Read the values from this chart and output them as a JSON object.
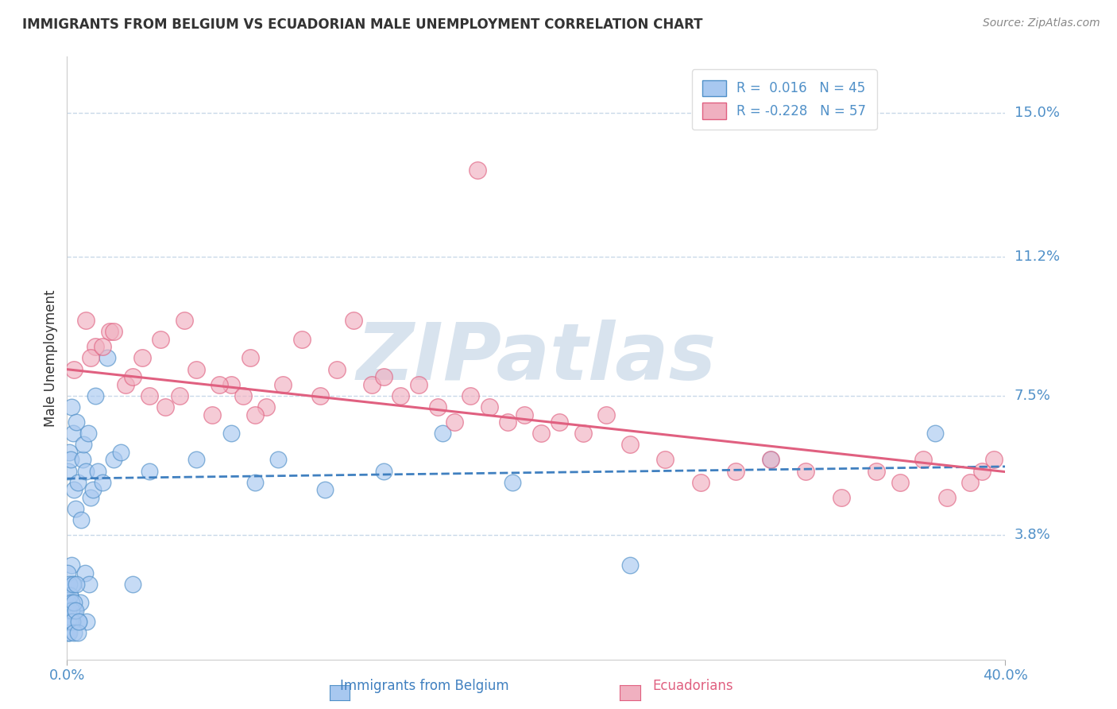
{
  "title": "IMMIGRANTS FROM BELGIUM VS ECUADORIAN MALE UNEMPLOYMENT CORRELATION CHART",
  "source": "Source: ZipAtlas.com",
  "ylabel": "Male Unemployment",
  "ytick_values": [
    3.8,
    7.5,
    11.2,
    15.0
  ],
  "ytick_labels": [
    "3.8%",
    "7.5%",
    "11.2%",
    "15.0%"
  ],
  "xtick_values": [
    0.0,
    40.0
  ],
  "xtick_labels": [
    "0.0%",
    "40.0%"
  ],
  "xmin": 0.0,
  "xmax": 40.0,
  "ymin": 0.5,
  "ymax": 16.5,
  "legend_labels": [
    "R =  0.016   N = 45",
    "R = -0.228   N = 57"
  ],
  "blue_x": [
    0.05,
    0.08,
    0.1,
    0.12,
    0.15,
    0.18,
    0.2,
    0.22,
    0.25,
    0.28,
    0.3,
    0.35,
    0.4,
    0.45,
    0.5,
    0.55,
    0.6,
    0.65,
    0.7,
    0.75,
    0.8,
    0.85,
    0.9,
    0.95,
    1.0,
    1.1,
    1.2,
    1.3,
    1.5,
    1.7,
    2.0,
    2.3,
    2.8,
    3.5,
    5.5,
    7.0,
    8.0,
    9.0,
    11.0,
    13.5,
    16.0,
    19.0,
    24.0,
    30.0,
    37.0
  ],
  "blue_y": [
    5.5,
    6.0,
    1.5,
    2.2,
    5.8,
    3.0,
    7.2,
    2.5,
    6.5,
    5.0,
    1.8,
    4.5,
    6.8,
    5.2,
    1.5,
    2.0,
    4.2,
    5.8,
    6.2,
    2.8,
    5.5,
    1.5,
    6.5,
    2.5,
    4.8,
    5.0,
    7.5,
    5.5,
    5.2,
    8.5,
    5.8,
    6.0,
    2.5,
    5.5,
    5.8,
    6.5,
    5.2,
    5.8,
    5.0,
    5.5,
    6.5,
    5.2,
    3.0,
    5.8,
    6.5
  ],
  "blue_cluster_x": [
    0.02,
    0.03,
    0.04,
    0.05,
    0.06,
    0.07,
    0.08,
    0.1,
    0.12,
    0.15,
    0.18,
    0.2,
    0.22,
    0.25,
    0.28,
    0.3,
    0.35,
    0.4,
    0.45,
    0.5
  ],
  "blue_cluster_y": [
    1.5,
    2.8,
    1.2,
    2.0,
    1.5,
    1.8,
    2.5,
    1.2,
    2.2,
    1.5,
    2.0,
    1.8,
    1.5,
    2.5,
    1.2,
    2.0,
    1.8,
    2.5,
    1.2,
    1.5
  ],
  "pink_x": [
    0.3,
    0.8,
    1.2,
    1.8,
    2.5,
    3.2,
    4.0,
    4.8,
    5.5,
    6.2,
    7.0,
    7.8,
    8.5,
    9.2,
    10.0,
    10.8,
    11.5,
    12.2,
    13.0,
    13.5,
    14.2,
    15.0,
    15.8,
    16.5,
    17.2,
    18.0,
    18.8,
    19.5,
    20.2,
    21.0,
    22.0,
    23.0,
    24.0,
    25.5,
    27.0,
    28.5,
    30.0,
    31.5,
    33.0,
    34.5,
    35.5,
    36.5,
    37.5,
    38.5,
    39.0,
    39.5,
    1.0,
    1.5,
    2.0,
    2.8,
    3.5,
    4.2,
    5.0,
    6.5,
    7.5,
    8.0,
    17.5
  ],
  "pink_y": [
    8.2,
    9.5,
    8.8,
    9.2,
    7.8,
    8.5,
    9.0,
    7.5,
    8.2,
    7.0,
    7.8,
    8.5,
    7.2,
    7.8,
    9.0,
    7.5,
    8.2,
    9.5,
    7.8,
    8.0,
    7.5,
    7.8,
    7.2,
    6.8,
    7.5,
    7.2,
    6.8,
    7.0,
    6.5,
    6.8,
    6.5,
    7.0,
    6.2,
    5.8,
    5.2,
    5.5,
    5.8,
    5.5,
    4.8,
    5.5,
    5.2,
    5.8,
    4.8,
    5.2,
    5.5,
    5.8,
    8.5,
    8.8,
    9.2,
    8.0,
    7.5,
    7.2,
    9.5,
    7.8,
    7.5,
    7.0,
    13.5
  ],
  "blue_color": "#A8C8F0",
  "blue_edge_color": "#5090C8",
  "pink_color": "#F0B0C0",
  "pink_edge_color": "#E06080",
  "blue_trend_color": "#4080C0",
  "pink_trend_color": "#E06080",
  "grid_color": "#C8D8E8",
  "title_color": "#333333",
  "axis_tick_color": "#5090C8",
  "ylabel_color": "#333333",
  "source_color": "#888888",
  "watermark_color": "#C8D8E8",
  "watermark_text": "ZIPatlas",
  "background_color": "#FFFFFF"
}
